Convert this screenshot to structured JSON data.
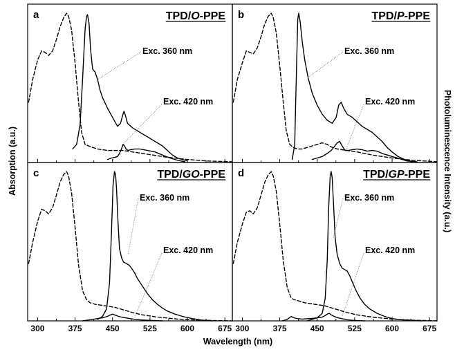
{
  "chart_data": {
    "type": "line",
    "ylabel_left": "Absorption (a.u.)",
    "ylabel_right": "Photoluminescence Intensity (a.u.)",
    "xlabel": "Wavelength (nm)",
    "xlim": [
      280,
      690
    ],
    "ylim": [
      0,
      1.05
    ],
    "xticks": [
      "300",
      "375",
      "450",
      "525",
      "600",
      "675"
    ],
    "panels": [
      {
        "letter": "a",
        "title_prefix": "TPD/",
        "title_italic": "O",
        "title_suffix": "-PPE",
        "annotations": [
          "Exc. 360 nm",
          "Exc. 420 nm"
        ],
        "series": [
          {
            "style": "dashed",
            "x": [
              282,
              290,
              300,
              308,
              315,
              322,
              330,
              338,
              345,
              352,
              358,
              362,
              368,
              375,
              382,
              388,
              395,
              402,
              410,
              420,
              430,
              440,
              450,
              460,
              470,
              480,
              500,
              530,
              560,
              600,
              640,
              690
            ],
            "y": [
              0.4,
              0.55,
              0.68,
              0.74,
              0.73,
              0.71,
              0.74,
              0.82,
              0.9,
              0.96,
              0.99,
              0.97,
              0.88,
              0.66,
              0.4,
              0.2,
              0.12,
              0.11,
              0.1,
              0.09,
              0.085,
              0.08,
              0.08,
              0.08,
              0.08,
              0.075,
              0.065,
              0.05,
              0.035,
              0.02,
              0.01,
              0.005
            ]
          },
          {
            "style": "solid",
            "x": [
              370,
              378,
              385,
              390,
              395,
              398,
              400,
              403,
              406,
              410,
              415,
              420,
              425,
              430,
              440,
              450,
              460,
              466,
              470,
              473,
              476,
              480,
              490,
              500,
              510,
              520,
              530,
              540,
              550,
              560,
              570,
              580,
              600
            ],
            "y": [
              0.09,
              0.12,
              0.25,
              0.55,
              0.88,
              0.97,
              0.98,
              0.92,
              0.75,
              0.62,
              0.6,
              0.55,
              0.48,
              0.43,
              0.36,
              0.3,
              0.24,
              0.26,
              0.31,
              0.34,
              0.31,
              0.26,
              0.23,
              0.21,
              0.19,
              0.17,
              0.15,
              0.13,
              0.11,
              0.08,
              0.05,
              0.03,
              0.01
            ]
          },
          {
            "style": "solid",
            "x": [
              440,
              448,
              455,
              460,
              464,
              468,
              471,
              474,
              477,
              481,
              486,
              495,
              505,
              520,
              535,
              550,
              565,
              580,
              595
            ],
            "y": [
              0.02,
              0.03,
              0.035,
              0.04,
              0.06,
              0.09,
              0.12,
              0.11,
              0.09,
              0.08,
              0.085,
              0.09,
              0.09,
              0.08,
              0.07,
              0.05,
              0.03,
              0.015,
              0.005
            ]
          }
        ]
      },
      {
        "letter": "b",
        "title_prefix": "TPD/",
        "title_italic": "P",
        "title_suffix": "-PPE",
        "annotations": [
          "Exc. 360 nm",
          "Exc. 420 nm"
        ],
        "series": [
          {
            "style": "dashed",
            "x": [
              282,
              290,
              300,
              308,
              315,
              322,
              330,
              338,
              345,
              352,
              358,
              362,
              368,
              375,
              382,
              388,
              395,
              402,
              410,
              420,
              430,
              440,
              450,
              460,
              470,
              480,
              490,
              500,
              510,
              530,
              560,
              600,
              640,
              690
            ],
            "y": [
              0.4,
              0.55,
              0.66,
              0.74,
              0.73,
              0.72,
              0.76,
              0.84,
              0.92,
              0.97,
              0.99,
              0.96,
              0.86,
              0.64,
              0.4,
              0.21,
              0.12,
              0.1,
              0.09,
              0.09,
              0.1,
              0.11,
              0.12,
              0.13,
              0.12,
              0.1,
              0.09,
              0.085,
              0.08,
              0.07,
              0.05,
              0.03,
              0.015,
              0.005
            ]
          },
          {
            "style": "solid",
            "x": [
              400,
              405,
              408,
              411,
              413,
              416,
              420,
              425,
              432,
              440,
              450,
              460,
              470,
              480,
              488,
              493,
              498,
              503,
              510,
              520,
              530,
              540,
              550,
              560,
              570,
              580,
              590,
              600,
              612,
              625,
              640
            ],
            "y": [
              0.02,
              0.12,
              0.55,
              0.95,
              0.99,
              0.93,
              0.8,
              0.68,
              0.56,
              0.46,
              0.38,
              0.32,
              0.28,
              0.26,
              0.3,
              0.38,
              0.4,
              0.36,
              0.32,
              0.3,
              0.27,
              0.24,
              0.22,
              0.2,
              0.17,
              0.14,
              0.1,
              0.07,
              0.04,
              0.02,
              0.005
            ]
          },
          {
            "style": "solid",
            "x": [
              440,
              450,
              460,
              470,
              478,
              483,
              490,
              495,
              500,
              506,
              512,
              520,
              530,
              540,
              550,
              560,
              570,
              580,
              590,
              600,
              615,
              630,
              650
            ],
            "y": [
              0.02,
              0.03,
              0.04,
              0.06,
              0.08,
              0.1,
              0.13,
              0.14,
              0.11,
              0.08,
              0.08,
              0.085,
              0.09,
              0.085,
              0.075,
              0.08,
              0.075,
              0.06,
              0.05,
              0.04,
              0.025,
              0.01,
              0.005
            ]
          }
        ]
      },
      {
        "letter": "c",
        "title_prefix": "TPD/",
        "title_italic": "GO",
        "title_suffix": "-PPE",
        "annotations": [
          "Exc. 360 nm",
          "Exc. 420 nm"
        ],
        "series": [
          {
            "style": "dashed",
            "x": [
              282,
              290,
              300,
              308,
              315,
              322,
              330,
              338,
              345,
              352,
              358,
              362,
              368,
              375,
              382,
              390,
              398,
              405,
              415,
              425,
              435,
              445,
              455,
              465,
              475,
              490,
              510,
              540,
              580,
              620,
              660,
              690
            ],
            "y": [
              0.38,
              0.52,
              0.66,
              0.74,
              0.73,
              0.71,
              0.75,
              0.84,
              0.92,
              0.97,
              0.99,
              0.96,
              0.85,
              0.62,
              0.37,
              0.2,
              0.14,
              0.12,
              0.11,
              0.105,
              0.1,
              0.095,
              0.09,
              0.08,
              0.07,
              0.055,
              0.04,
              0.025,
              0.012,
              0.005,
              0.002,
              0.0
            ]
          },
          {
            "style": "solid",
            "x": [
              420,
              430,
              438,
              444,
              448,
              451,
              454,
              456,
              458,
              461,
              464,
              468,
              472,
              478,
              483,
              488,
              494,
              500,
              510,
              520,
              530,
              540,
              550,
              560,
              575,
              590,
              610,
              630,
              650
            ],
            "y": [
              0.01,
              0.03,
              0.08,
              0.25,
              0.6,
              0.9,
              0.99,
              0.97,
              0.88,
              0.65,
              0.48,
              0.42,
              0.39,
              0.38,
              0.37,
              0.35,
              0.32,
              0.28,
              0.23,
              0.18,
              0.14,
              0.11,
              0.085,
              0.065,
              0.045,
              0.03,
              0.015,
              0.005,
              0.0
            ]
          },
          {
            "style": "solid",
            "x": [
              390,
              400,
              410,
              420,
              430,
              440,
              446,
              450,
              454,
              458,
              462,
              468,
              476,
              485,
              495,
              505,
              520,
              535,
              550
            ],
            "y": [
              0.0,
              0.005,
              0.01,
              0.015,
              0.02,
              0.03,
              0.04,
              0.045,
              0.04,
              0.035,
              0.03,
              0.025,
              0.02,
              0.015,
              0.01,
              0.007,
              0.004,
              0.002,
              0.0
            ]
          }
        ]
      },
      {
        "letter": "d",
        "title_prefix": "TPD/",
        "title_italic": "GP",
        "title_suffix": "-PPE",
        "annotations": [
          "Exc. 360 nm",
          "Exc. 420 nm"
        ],
        "series": [
          {
            "style": "dashed",
            "x": [
              282,
              290,
              300,
              308,
              315,
              322,
              330,
              338,
              345,
              352,
              358,
              362,
              368,
              375,
              382,
              390,
              398,
              405,
              415,
              425,
              435,
              445,
              455,
              465,
              475,
              485,
              495,
              510,
              530,
              560,
              600,
              640,
              690
            ],
            "y": [
              0.38,
              0.52,
              0.64,
              0.72,
              0.73,
              0.71,
              0.75,
              0.84,
              0.92,
              0.97,
              0.99,
              0.96,
              0.86,
              0.64,
              0.4,
              0.22,
              0.15,
              0.14,
              0.13,
              0.12,
              0.115,
              0.11,
              0.105,
              0.1,
              0.09,
              0.08,
              0.07,
              0.055,
              0.04,
              0.025,
              0.012,
              0.005,
              0.0
            ]
          },
          {
            "style": "solid",
            "x": [
              430,
              440,
              450,
              460,
              466,
              470,
              473,
              476,
              478,
              480,
              483,
              486,
              490,
              495,
              500,
              505,
              510,
              515,
              520,
              528,
              536,
              545,
              555,
              570,
              585,
              600,
              620,
              640,
              660
            ],
            "y": [
              0.0,
              0.01,
              0.02,
              0.05,
              0.15,
              0.4,
              0.75,
              0.96,
              0.99,
              0.95,
              0.75,
              0.55,
              0.44,
              0.38,
              0.35,
              0.34,
              0.33,
              0.3,
              0.26,
              0.2,
              0.15,
              0.11,
              0.08,
              0.05,
              0.03,
              0.015,
              0.007,
              0.003,
              0.0
            ]
          },
          {
            "style": "solid",
            "x": [
              380,
              390,
              398,
              403,
              410,
              420,
              430,
              440,
              450,
              460,
              466,
              470,
              474,
              478,
              484,
              490,
              500,
              510,
              520,
              530,
              545
            ],
            "y": [
              0.0,
              0.01,
              0.03,
              0.02,
              0.015,
              0.012,
              0.014,
              0.016,
              0.02,
              0.025,
              0.035,
              0.045,
              0.05,
              0.04,
              0.03,
              0.022,
              0.014,
              0.008,
              0.004,
              0.002,
              0.0
            ]
          }
        ]
      }
    ]
  }
}
